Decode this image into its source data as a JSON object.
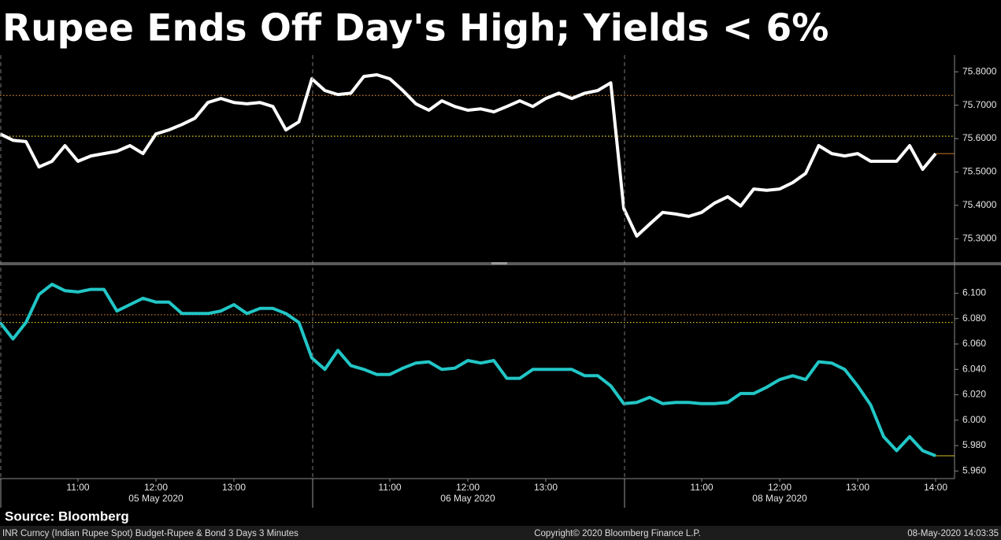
{
  "chart_data": [
    {
      "type": "line",
      "title": "Rupee Ends Off Day's High; Yields < 6%",
      "color": "#ffffff",
      "values": [
        75.614,
        75.595,
        75.591,
        75.515,
        75.532,
        75.579,
        75.532,
        75.548,
        75.555,
        75.562,
        75.579,
        75.555,
        75.614,
        75.626,
        75.642,
        75.661,
        75.708,
        75.72,
        75.708,
        75.704,
        75.708,
        75.696,
        75.626,
        75.65,
        75.779,
        75.744,
        75.732,
        75.736,
        75.786,
        75.791,
        75.779,
        75.744,
        75.704,
        75.685,
        75.713,
        75.696,
        75.685,
        75.689,
        75.68,
        75.696,
        75.713,
        75.696,
        75.72,
        75.736,
        75.72,
        75.736,
        75.744,
        75.767,
        75.391,
        75.308,
        75.344,
        75.379,
        75.374,
        75.367,
        75.379,
        75.407,
        75.426,
        75.398,
        75.449,
        75.445,
        75.449,
        75.468,
        75.496,
        75.579,
        75.555,
        75.548,
        75.555,
        75.532,
        75.532,
        75.532,
        75.579,
        75.508,
        75.555
      ],
      "ylim": [
        75.23,
        75.85
      ],
      "yticks": [
        {
          "value": 75.8,
          "label": "75.8000"
        },
        {
          "value": 75.7,
          "label": "75.7000"
        },
        {
          "value": 75.6,
          "label": "75.6000"
        },
        {
          "value": 75.5,
          "label": "75.5000"
        },
        {
          "value": 75.4,
          "label": "75.4000"
        },
        {
          "value": 75.3,
          "label": "75.3000"
        }
      ],
      "ref_lines": [
        {
          "value": 75.729,
          "color": "#c0792c"
        },
        {
          "value": 75.607,
          "color": "#d9c52a"
        }
      ],
      "last_color": "#c0792c"
    },
    {
      "type": "line",
      "color": "#22c6c6",
      "values": [
        6.077,
        6.064,
        6.077,
        6.099,
        6.107,
        6.102,
        6.101,
        6.103,
        6.103,
        6.086,
        6.091,
        6.096,
        6.093,
        6.093,
        6.084,
        6.084,
        6.084,
        6.086,
        6.091,
        6.084,
        6.088,
        6.088,
        6.084,
        6.077,
        6.049,
        6.04,
        6.055,
        6.043,
        6.04,
        6.036,
        6.036,
        6.041,
        6.045,
        6.046,
        6.04,
        6.041,
        6.047,
        6.045,
        6.047,
        6.033,
        6.033,
        6.04,
        6.04,
        6.04,
        6.04,
        6.035,
        6.035,
        6.027,
        6.013,
        6.014,
        6.018,
        6.013,
        6.014,
        6.014,
        6.013,
        6.013,
        6.014,
        6.021,
        6.021,
        6.026,
        6.032,
        6.035,
        6.032,
        6.046,
        6.045,
        6.04,
        6.027,
        6.012,
        5.987,
        5.976,
        5.987,
        5.976,
        5.972
      ],
      "ylim": [
        5.954,
        6.122
      ],
      "yticks": [
        {
          "value": 6.1,
          "label": "6.100"
        },
        {
          "value": 6.08,
          "label": "6.080"
        },
        {
          "value": 6.06,
          "label": "6.060"
        },
        {
          "value": 6.04,
          "label": "6.040"
        },
        {
          "value": 6.02,
          "label": "6.020"
        },
        {
          "value": 6.0,
          "label": "6.000"
        },
        {
          "value": 5.98,
          "label": "5.980"
        },
        {
          "value": 5.96,
          "label": "5.960"
        }
      ],
      "ref_lines": [
        {
          "value": 6.083,
          "color": "#c0792c"
        },
        {
          "value": 6.077,
          "color": "#d9c52a"
        }
      ],
      "last_color": "#d9c52a",
      "categories": [
        null,
        null,
        null,
        null,
        null,
        null,
        "11:00",
        null,
        null,
        null,
        null,
        null,
        "12:00",
        null,
        null,
        null,
        null,
        null,
        "13:00",
        null,
        null,
        null,
        null,
        null,
        null,
        null,
        null,
        null,
        null,
        null,
        "11:00",
        null,
        null,
        null,
        null,
        null,
        "12:00",
        null,
        null,
        null,
        null,
        null,
        "13:00",
        null,
        null,
        null,
        null,
        null,
        null,
        null,
        null,
        null,
        null,
        null,
        "11:00",
        null,
        null,
        null,
        null,
        null,
        "12:00",
        null,
        null,
        null,
        null,
        null,
        "13:00",
        null,
        null,
        null,
        null,
        null,
        "14:00"
      ],
      "x_groups": [
        "05 May 2020",
        "06 May 2020",
        "08 May 2020"
      ]
    }
  ],
  "source": "Source: Bloomberg",
  "footer": {
    "left": "INR Curncy (Indian Rupee Spot) Budget-Rupee & Bond 3 Days 3 Minutes",
    "center": "Copyright© 2020 Bloomberg Finance L.P.",
    "right": "08-May-2020 14:03:35"
  }
}
